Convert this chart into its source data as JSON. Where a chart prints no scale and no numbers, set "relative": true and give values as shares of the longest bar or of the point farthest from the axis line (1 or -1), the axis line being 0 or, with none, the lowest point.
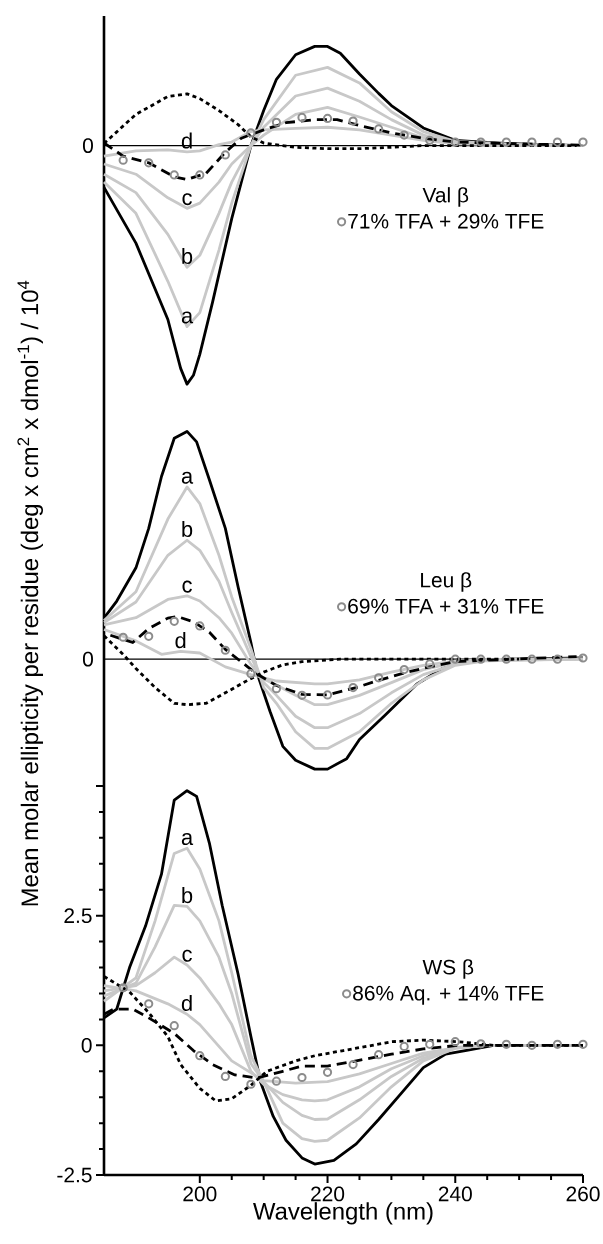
{
  "chart_data": [
    {
      "type": "line",
      "relative": true,
      "legend_title": "Val β",
      "legend": "right",
      "xlim": [
        185,
        260
      ],
      "annotations": [
        "0"
      ],
      "series": [
        {
          "color": "#000000",
          "line_style": "solid",
          "x": [
            185,
            190,
            195,
            197,
            198,
            199,
            200,
            202,
            205,
            208,
            210,
            212,
            215,
            218,
            220,
            222,
            225,
            228,
            230,
            235,
            240,
            245,
            250,
            260
          ],
          "values": [
            -0.175,
            -0.409,
            -0.729,
            -0.934,
            -1,
            -0.963,
            -0.875,
            -0.656,
            -0.306,
            0,
            0.147,
            0.278,
            0.381,
            0.416,
            0.416,
            0.387,
            0.3,
            0.219,
            0.168,
            0.074,
            0.022,
            0.013,
            0.007,
            0
          ]
        },
        {
          "name": "a",
          "color": "#c8c8c8",
          "line_style": "solid",
          "x": [
            185,
            190,
            195,
            198,
            200,
            203,
            205,
            208,
            210,
            215,
            220,
            225,
            230,
            235,
            240,
            250,
            260
          ],
          "values": [
            -0.153,
            -0.284,
            -0.569,
            -0.759,
            -0.7,
            -0.438,
            -0.241,
            0,
            0.109,
            0.295,
            0.328,
            0.263,
            0.142,
            0.059,
            0.018,
            0.004,
            0
          ]
        },
        {
          "name": "b",
          "color": "#c8c8c8",
          "line_style": "solid",
          "x": [
            185,
            190,
            195,
            198,
            200,
            203,
            205,
            208,
            210,
            215,
            220,
            225,
            230,
            235,
            240,
            250,
            260
          ],
          "values": [
            -0.12,
            -0.197,
            -0.372,
            -0.51,
            -0.46,
            -0.284,
            -0.153,
            0,
            0.077,
            0.208,
            0.241,
            0.186,
            0.109,
            0.044,
            0.013,
            0.004,
            0
          ]
        },
        {
          "name": "c",
          "color": "#c8c8c8",
          "line_style": "solid",
          "x": [
            185,
            190,
            195,
            198,
            200,
            203,
            205,
            208,
            210,
            215,
            220,
            225,
            230,
            235,
            240,
            250,
            260
          ],
          "values": [
            -0.077,
            -0.12,
            -0.219,
            -0.263,
            -0.241,
            -0.153,
            -0.077,
            0,
            0.044,
            0.131,
            0.16,
            0.12,
            0.077,
            0.033,
            0.011,
            0.002,
            0
          ]
        },
        {
          "name": "d",
          "color": "#c8c8c8",
          "line_style": "solid",
          "x": [
            185,
            190,
            195,
            198,
            200,
            203,
            205,
            208,
            210,
            215,
            220,
            225,
            230,
            235,
            240,
            250,
            260
          ],
          "values": [
            -0.044,
            -0.022,
            -0.018,
            -0.026,
            -0.022,
            0.004,
            0.015,
            0.059,
            0.066,
            0.072,
            0.077,
            0.066,
            0.044,
            0.022,
            0.007,
            0.002,
            0
          ]
        },
        {
          "color": "#000000",
          "line_style": "dashed",
          "x": [
            185,
            188,
            192,
            196,
            198,
            201,
            204,
            206.5,
            210,
            213.5,
            218,
            221.5,
            225.5,
            230,
            235,
            240,
            250,
            260
          ],
          "values": [
            0.011,
            -0.044,
            -0.072,
            -0.131,
            -0.142,
            -0.116,
            -0.028,
            0.031,
            0.066,
            0.096,
            0.109,
            0.109,
            0.081,
            0.053,
            0.031,
            0.015,
            0.007,
            0.002
          ]
        },
        {
          "color": "#000000",
          "line_style": "dotted",
          "x": [
            185,
            190,
            195,
            198,
            200,
            203,
            206,
            208,
            210,
            215,
            220,
            225,
            230,
            235,
            240,
            259
          ],
          "values": [
            0.009,
            0.131,
            0.206,
            0.217,
            0.197,
            0.147,
            0.088,
            0.037,
            0.011,
            -0.007,
            -0.013,
            -0.013,
            -0.007,
            0,
            0,
            0
          ]
        },
        {
          "type": "scatter",
          "name": "71% TFA + 29% TFE",
          "color": "#8c8c8c",
          "marker": "circle",
          "x": [
            188,
            192,
            196,
            200,
            204,
            208,
            212,
            216,
            220,
            224,
            228,
            232,
            236,
            240,
            244,
            248,
            252,
            256,
            260
          ],
          "values": [
            -0.061,
            -0.072,
            -0.123,
            -0.123,
            -0.039,
            0.053,
            0.098,
            0.118,
            0.114,
            0.103,
            0.07,
            0.044,
            0.022,
            0.015,
            0.015,
            0.015,
            0.015,
            0.015,
            0.015
          ]
        }
      ]
    },
    {
      "type": "line",
      "relative": true,
      "legend_title": "Leu β",
      "legend": "right",
      "xlim": [
        185,
        260
      ],
      "ylabel": "Mean molar ellipticity per residue (deg x cm$^{2}$ x dmol$^{-1}$) / 10$^{4}$",
      "annotations": [
        "0"
      ],
      "series": [
        {
          "color": "#000000",
          "line_style": "solid",
          "x": [
            185,
            187,
            190,
            192,
            194,
            196,
            198,
            199.5,
            201.5,
            204,
            206,
            208,
            209,
            211,
            213,
            215,
            218,
            220,
            223,
            225,
            229,
            234,
            238,
            242,
            249,
            260
          ],
          "values": [
            0.18,
            0.255,
            0.401,
            0.574,
            0.802,
            0.97,
            1,
            0.954,
            0.788,
            0.574,
            0.317,
            0.073,
            -0.064,
            -0.23,
            -0.383,
            -0.444,
            -0.483,
            -0.483,
            -0.437,
            -0.353,
            -0.246,
            -0.109,
            -0.041,
            -0.007,
            0,
            0.005
          ]
        },
        {
          "name": "a",
          "color": "#c8c8c8",
          "line_style": "solid",
          "x": [
            185,
            190,
            195,
            198,
            200,
            203,
            205,
            208,
            210,
            212,
            215,
            218,
            220,
            225,
            230,
            235,
            240,
            245,
            260
          ],
          "values": [
            0.17,
            0.296,
            0.615,
            0.756,
            0.683,
            0.456,
            0.273,
            0.046,
            -0.125,
            -0.194,
            -0.319,
            -0.392,
            -0.392,
            -0.319,
            -0.194,
            -0.091,
            -0.027,
            -0.007,
            0
          ]
        },
        {
          "name": "b",
          "color": "#c8c8c8",
          "line_style": "solid",
          "x": [
            185,
            190,
            195,
            198,
            200,
            203,
            205,
            208,
            210,
            212,
            215,
            218,
            220,
            225,
            230,
            235,
            240,
            245,
            260
          ],
          "values": [
            0.16,
            0.251,
            0.456,
            0.522,
            0.478,
            0.342,
            0.205,
            0.011,
            -0.103,
            -0.159,
            -0.251,
            -0.301,
            -0.301,
            -0.239,
            -0.148,
            -0.068,
            -0.023,
            -0.005,
            0
          ]
        },
        {
          "name": "c",
          "color": "#c8c8c8",
          "line_style": "solid",
          "x": [
            185,
            190,
            195,
            198,
            200,
            203,
            205,
            208,
            210,
            212,
            215,
            218,
            220,
            225,
            230,
            235,
            240,
            245,
            260
          ],
          "values": [
            0.15,
            0.182,
            0.262,
            0.278,
            0.255,
            0.182,
            0.114,
            -0.023,
            -0.087,
            -0.114,
            -0.159,
            -0.2,
            -0.2,
            -0.159,
            -0.103,
            -0.046,
            -0.014,
            -0.002,
            0
          ]
        },
        {
          "name": "d",
          "color": "#c8c8c8",
          "line_style": "solid",
          "x": [
            185,
            190,
            194,
            197,
            200,
            204,
            208,
            212,
            218,
            220,
            225,
            230,
            235,
            240,
            245,
            260
          ],
          "values": [
            0.13,
            0.08,
            0.021,
            0.034,
            0.027,
            -0.034,
            -0.068,
            -0.096,
            -0.109,
            -0.109,
            -0.091,
            -0.057,
            -0.027,
            -0.009,
            -0.002,
            0
          ]
        },
        {
          "color": "#000000",
          "line_style": "dashed",
          "x": [
            186,
            189.5,
            192,
            195,
            196.5,
            199,
            201.5,
            204,
            207.5,
            209,
            212,
            216,
            220,
            224.5,
            228,
            232.5,
            236,
            240,
            249,
            259
          ],
          "values": [
            0.105,
            0.073,
            0.134,
            0.18,
            0.187,
            0.164,
            0.118,
            0.043,
            -0.034,
            -0.066,
            -0.116,
            -0.155,
            -0.157,
            -0.125,
            -0.093,
            -0.057,
            -0.034,
            -0.011,
            0,
            0.011
          ]
        },
        {
          "color": "#000000",
          "line_style": "dotted",
          "x": [
            185,
            188,
            190,
            193,
            196,
            198,
            201,
            204,
            207.5,
            210,
            213,
            216,
            222,
            250
          ],
          "values": [
            0.103,
            0.021,
            -0.041,
            -0.125,
            -0.194,
            -0.2,
            -0.194,
            -0.148,
            -0.093,
            -0.057,
            -0.025,
            -0.011,
            0,
            0
          ]
        },
        {
          "type": "scatter",
          "name": "69% TFA + 31% TFE",
          "color": "#8c8c8c",
          "marker": "circle",
          "x": [
            188,
            192,
            196,
            200,
            204,
            208,
            212,
            216,
            220,
            224,
            228,
            232,
            236,
            240,
            244,
            248,
            252,
            256,
            260
          ],
          "values": [
            0.096,
            0.1,
            0.166,
            0.146,
            0.039,
            -0.064,
            -0.13,
            -0.159,
            -0.157,
            -0.125,
            -0.082,
            -0.046,
            -0.021,
            0,
            0,
            0,
            0,
            0,
            0.005
          ]
        }
      ]
    },
    {
      "type": "line",
      "legend_title": "WS β",
      "legend": "right",
      "xlim": [
        185,
        260
      ],
      "ylim": [
        -2.5,
        5
      ],
      "xlabel": "Wavelength (nm)",
      "xticks": [
        200,
        220,
        240,
        260
      ],
      "yticks": [
        {
          "value": 5,
          "label": null
        },
        2.5,
        0,
        -2.5
      ],
      "series": [
        {
          "color": "#000000",
          "line_style": "solid",
          "x": [
            185,
            187,
            189,
            191.5,
            194,
            196,
            198,
            199.5,
            201.5,
            203.5,
            206,
            208,
            209.5,
            211.5,
            213.5,
            216,
            218,
            221,
            224.5,
            228,
            231.5,
            235,
            238.5,
            242,
            246,
            260
          ],
          "values": [
            0.53,
            0.7,
            1.5,
            2.3,
            3.3,
            4.73,
            4.91,
            4.8,
            3.9,
            2.7,
            1.37,
            0.17,
            -0.7,
            -1.37,
            -1.83,
            -2.17,
            -2.29,
            -2.22,
            -1.9,
            -1.43,
            -0.93,
            -0.43,
            -0.17,
            -0.09,
            0,
            0
          ]
        },
        {
          "name": "a",
          "color": "#c8c8c8",
          "line_style": "solid",
          "x": [
            185,
            190,
            193,
            196,
            198,
            200,
            203,
            205,
            208,
            210,
            213,
            216,
            218,
            220,
            225,
            230,
            235,
            240,
            245,
            260
          ],
          "values": [
            0.85,
            1.3,
            2.4,
            3.7,
            3.8,
            3.4,
            2.4,
            1.4,
            -0.2,
            -0.7,
            -1.5,
            -1.8,
            -1.85,
            -1.83,
            -1.4,
            -0.8,
            -0.3,
            -0.06,
            0,
            0
          ]
        },
        {
          "name": "b",
          "color": "#c8c8c8",
          "line_style": "solid",
          "x": [
            185,
            190,
            193,
            196,
            198,
            200,
            203,
            205,
            208,
            210,
            213,
            216,
            218,
            220,
            225,
            230,
            235,
            240,
            245,
            260
          ],
          "values": [
            0.95,
            1.2,
            1.9,
            2.7,
            2.68,
            2.4,
            1.7,
            1.0,
            -0.35,
            -0.7,
            -1.1,
            -1.35,
            -1.43,
            -1.42,
            -1.05,
            -0.6,
            -0.25,
            -0.05,
            0,
            0
          ]
        },
        {
          "name": "c",
          "color": "#c8c8c8",
          "line_style": "solid",
          "x": [
            185,
            190,
            193,
            196,
            198,
            200,
            203,
            205,
            208,
            210,
            213,
            216,
            218,
            220,
            225,
            230,
            235,
            240,
            245,
            260
          ],
          "values": [
            1.05,
            1.15,
            1.4,
            1.7,
            1.55,
            1.3,
            0.8,
            0.4,
            -0.5,
            -0.75,
            -0.95,
            -1.05,
            -1.07,
            -1.05,
            -0.8,
            -0.45,
            -0.2,
            -0.04,
            0,
            0
          ]
        },
        {
          "name": "d",
          "color": "#c8c8c8",
          "line_style": "solid",
          "x": [
            185,
            190,
            195,
            198,
            200,
            205,
            210,
            215,
            220,
            225,
            230,
            235,
            240,
            245,
            260
          ],
          "values": [
            1.15,
            1.05,
            0.8,
            0.6,
            0.4,
            -0.3,
            -0.68,
            -0.73,
            -0.7,
            -0.55,
            -0.35,
            -0.15,
            -0.05,
            0,
            0
          ]
        },
        {
          "color": "#000000",
          "line_style": "dashed",
          "x": [
            185,
            186.5,
            189.5,
            192,
            196,
            199,
            202,
            205.5,
            209,
            213,
            216,
            220,
            224.5,
            230,
            235,
            240.5,
            260
          ],
          "values": [
            0.6,
            0.7,
            0.7,
            0.53,
            0.23,
            -0.1,
            -0.37,
            -0.57,
            -0.63,
            -0.5,
            -0.4,
            -0.4,
            -0.3,
            -0.17,
            -0.07,
            0,
            0
          ]
        },
        {
          "color": "#000000",
          "line_style": "dotted",
          "x": [
            185,
            189,
            192,
            195,
            197,
            200,
            202.5,
            205,
            208,
            210.5,
            215,
            218,
            222.5,
            227,
            230,
            235,
            240.5,
            246,
            260
          ],
          "values": [
            1.33,
            1.03,
            0.63,
            0.17,
            -0.37,
            -0.83,
            -1.07,
            -1.03,
            -0.77,
            -0.5,
            -0.3,
            -0.2,
            -0.1,
            0,
            0.07,
            0.1,
            0.07,
            0,
            0
          ]
        },
        {
          "type": "scatter",
          "name": "86% Aq. + 14% TFE",
          "color": "#8c8c8c",
          "marker": "circle",
          "x": [
            188,
            192,
            196,
            200,
            204,
            208,
            212,
            216,
            220,
            224,
            228,
            232,
            236,
            240,
            244,
            248,
            252,
            256,
            260
          ],
          "values": [
            1.11,
            0.8,
            0.38,
            -0.2,
            -0.6,
            -0.75,
            -0.69,
            -0.62,
            -0.52,
            -0.37,
            -0.18,
            -0.02,
            0.02,
            0.07,
            0.03,
            0.02,
            0,
            0.02,
            0.02
          ]
        }
      ]
    }
  ]
}
